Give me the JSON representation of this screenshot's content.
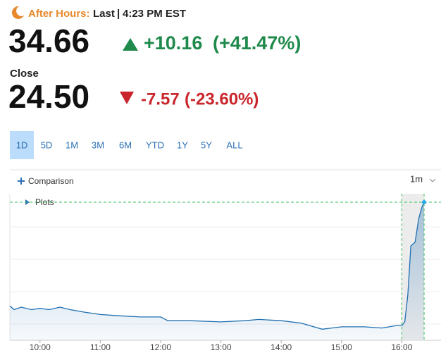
{
  "header": {
    "session_label": "After Hours:",
    "last_label": "Last",
    "separator": "|",
    "time": "4:23 PM EST",
    "price": "34.66",
    "change": "+10.16",
    "change_pct": "(+41.47%)",
    "close_label": "Close",
    "close_price": "24.50",
    "close_change": "-7.57",
    "close_change_pct": "(-23.60%)"
  },
  "tabs": [
    "1D",
    "5D",
    "1M",
    "3M",
    "6M",
    "YTD",
    "1Y",
    "5Y",
    "ALL"
  ],
  "selected_tab": "1D",
  "controls": {
    "comparison": "Comparison",
    "plots": "Plots",
    "interval": "1m"
  },
  "chart_data": {
    "type": "line",
    "color": "#1f6fb2",
    "x": [
      9.5,
      9.57,
      9.69,
      9.86,
      10.0,
      10.15,
      10.33,
      10.5,
      10.73,
      11.0,
      11.31,
      11.66,
      12.0,
      12.12,
      12.48,
      13.0,
      13.4,
      13.63,
      14.0,
      14.33,
      14.68,
      15.0,
      15.38,
      15.67,
      15.91,
      16.0,
      16.05,
      16.1,
      16.15,
      16.22,
      16.28,
      16.33,
      16.37
    ],
    "values": [
      26.2,
      25.9,
      26.1,
      25.9,
      26.0,
      25.9,
      26.1,
      25.9,
      25.7,
      25.5,
      25.4,
      25.3,
      25.3,
      25.0,
      25.0,
      24.9,
      25.0,
      25.1,
      25.0,
      24.8,
      24.3,
      24.5,
      24.5,
      24.4,
      24.6,
      24.6,
      24.9,
      27.1,
      31.1,
      31.4,
      33.3,
      34.2,
      34.66
    ],
    "xlim": [
      9.5,
      16.65
    ],
    "ylim": [
      23.4,
      35.35
    ],
    "xticks": [
      {
        "value": 10,
        "label": "10:00"
      },
      {
        "value": 11,
        "label": "11:00"
      },
      {
        "value": 12,
        "label": "12:00"
      },
      {
        "value": 13,
        "label": "13:00"
      },
      {
        "value": 14,
        "label": "14:00"
      },
      {
        "value": 15,
        "label": "15:00"
      },
      {
        "value": 16,
        "label": "16:00"
      }
    ]
  }
}
